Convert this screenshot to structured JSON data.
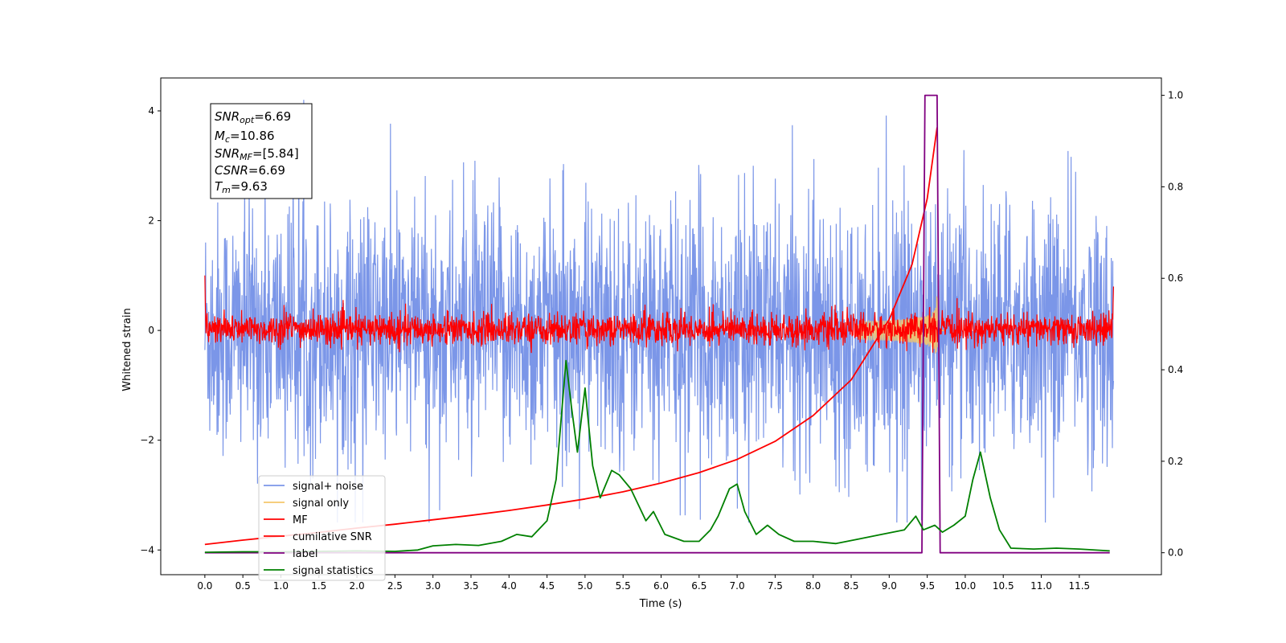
{
  "chart_data": {
    "type": "line",
    "title": "",
    "xlabel": "Time (s)",
    "ylabel": "Whitened strain",
    "xlim": [
      -0.58,
      12.58
    ],
    "ylim": [
      -4.45,
      4.6
    ],
    "y2lim": [
      -0.048,
      1.038
    ],
    "x_ticks": [
      "0.0",
      "0.5",
      "1.0",
      "1.5",
      "2.0",
      "2.5",
      "3.0",
      "3.5",
      "4.0",
      "4.5",
      "5.0",
      "5.5",
      "6.0",
      "6.5",
      "7.0",
      "7.5",
      "8.0",
      "8.5",
      "9.0",
      "9.5",
      "10.0",
      "10.5",
      "11.0",
      "11.5"
    ],
    "y_ticks": [
      "4",
      "2",
      "0",
      "−2",
      "−4"
    ],
    "y2_ticks": [
      "1.0",
      "0.8",
      "0.6",
      "0.4",
      "0.2",
      "0.0"
    ],
    "grid": false,
    "legend_position": "lower-left",
    "annotation": {
      "snr_opt": {
        "main": "SNR",
        "sub": "opt",
        "value": "=6.69"
      },
      "mc": {
        "main": "M",
        "sub": "c",
        "value": "=10.86"
      },
      "snr_mf": {
        "main": "SNR",
        "sub": "MF",
        "value": "=[5.84]"
      },
      "csnr": {
        "main": "CSNR",
        "sub": "",
        "value": "=6.69"
      },
      "tm": {
        "main": "T",
        "sub": "m",
        "value": "=9.63"
      }
    },
    "series": [
      {
        "name": "signal+ noise",
        "color": "#7b96e8",
        "axis": "left",
        "description_range": [
          -3.5,
          4.2
        ]
      },
      {
        "name": "signal only",
        "color": "#f5c76b",
        "axis": "left",
        "merger_time": 9.63,
        "peak_amplitude": 0.7
      },
      {
        "name": "MF",
        "color": "#ff0000",
        "axis": "left"
      },
      {
        "name": "cumilative SNR",
        "color": "#ff0000",
        "axis": "left",
        "x": [
          0.0,
          0.5,
          1.0,
          1.5,
          2.0,
          2.5,
          3.0,
          3.5,
          4.0,
          4.5,
          5.0,
          5.5,
          6.0,
          6.5,
          7.0,
          7.5,
          8.0,
          8.5,
          9.0,
          9.3,
          9.5,
          9.63
        ],
        "y": [
          -3.9,
          -3.82,
          -3.75,
          -3.68,
          -3.6,
          -3.53,
          -3.45,
          -3.37,
          -3.28,
          -3.18,
          -3.07,
          -2.94,
          -2.78,
          -2.59,
          -2.35,
          -2.02,
          -1.55,
          -0.9,
          0.2,
          1.2,
          2.4,
          3.7
        ]
      },
      {
        "name": "label",
        "color": "#800080",
        "axis": "right",
        "x": [
          0.0,
          9.43,
          9.47,
          9.63,
          9.67,
          11.9
        ],
        "y": [
          0.0,
          0.0,
          1.0,
          1.0,
          0.0,
          0.0
        ]
      },
      {
        "name": "signal statistics",
        "color": "#008000",
        "axis": "right",
        "x": [
          0.0,
          0.5,
          1.0,
          1.5,
          2.0,
          2.5,
          2.8,
          3.0,
          3.3,
          3.6,
          3.9,
          4.1,
          4.3,
          4.5,
          4.62,
          4.75,
          4.82,
          4.9,
          5.0,
          5.1,
          5.2,
          5.35,
          5.45,
          5.6,
          5.8,
          5.9,
          6.05,
          6.3,
          6.5,
          6.65,
          6.75,
          6.9,
          7.0,
          7.1,
          7.25,
          7.4,
          7.55,
          7.75,
          8.0,
          8.3,
          8.6,
          8.9,
          9.2,
          9.35,
          9.45,
          9.6,
          9.7,
          9.85,
          10.0,
          10.1,
          10.2,
          10.33,
          10.45,
          10.6,
          10.9,
          11.2,
          11.5,
          11.9
        ],
        "y": [
          0.001,
          0.002,
          0.002,
          0.003,
          0.004,
          0.003,
          0.006,
          0.015,
          0.018,
          0.016,
          0.025,
          0.04,
          0.035,
          0.07,
          0.16,
          0.42,
          0.32,
          0.22,
          0.36,
          0.19,
          0.12,
          0.18,
          0.17,
          0.14,
          0.07,
          0.09,
          0.04,
          0.025,
          0.025,
          0.05,
          0.08,
          0.14,
          0.15,
          0.09,
          0.04,
          0.06,
          0.04,
          0.025,
          0.025,
          0.02,
          0.03,
          0.04,
          0.05,
          0.08,
          0.05,
          0.06,
          0.045,
          0.06,
          0.08,
          0.16,
          0.22,
          0.12,
          0.05,
          0.01,
          0.008,
          0.01,
          0.008,
          0.004
        ]
      }
    ]
  }
}
